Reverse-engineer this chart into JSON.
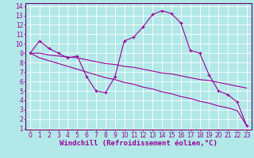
{
  "xlabel": "Windchill (Refroidissement éolien,°C)",
  "background_color": "#b2e8e8",
  "line_color": "#990099",
  "grid_color": "#ffffff",
  "xlim": [
    -0.5,
    23.5
  ],
  "ylim": [
    1,
    14
  ],
  "yticks": [
    1,
    2,
    3,
    4,
    5,
    6,
    7,
    8,
    9,
    10,
    11,
    12,
    13,
    14
  ],
  "xticks": [
    0,
    1,
    2,
    3,
    4,
    5,
    6,
    7,
    8,
    9,
    10,
    11,
    12,
    13,
    14,
    15,
    16,
    17,
    18,
    19,
    20,
    21,
    22,
    23
  ],
  "main_y": [
    9.0,
    10.3,
    9.5,
    9.0,
    8.5,
    8.7,
    6.5,
    5.0,
    4.8,
    6.5,
    10.3,
    10.7,
    11.8,
    13.1,
    13.5,
    13.2,
    12.2,
    9.3,
    9.0,
    6.7,
    5.0,
    4.6,
    3.8,
    1.3
  ],
  "trend1_y": [
    9.0,
    9.0,
    8.8,
    8.7,
    8.6,
    8.5,
    8.3,
    8.1,
    7.9,
    7.8,
    7.6,
    7.5,
    7.3,
    7.1,
    6.9,
    6.8,
    6.6,
    6.4,
    6.2,
    6.1,
    5.9,
    5.7,
    5.5,
    5.3
  ],
  "trend2_y": [
    9.0,
    8.5,
    8.2,
    7.9,
    7.6,
    7.3,
    7.0,
    6.7,
    6.4,
    6.2,
    5.9,
    5.7,
    5.4,
    5.2,
    4.9,
    4.7,
    4.4,
    4.2,
    3.9,
    3.7,
    3.4,
    3.2,
    2.9,
    1.3
  ],
  "tick_fontsize": 5.5,
  "label_fontsize": 6.5,
  "axis_color": "#990099",
  "spine_color": "#660066"
}
